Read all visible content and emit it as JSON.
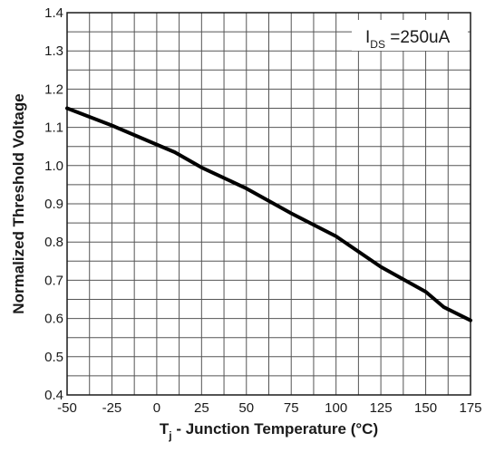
{
  "chart_data": {
    "type": "line",
    "xlabel_main": "T",
    "xlabel_sub": "j",
    "xlabel_rest": " - Junction Temperature (°C)",
    "ylabel": "Normalized Threshold Voltage",
    "xlim": [
      -50,
      175
    ],
    "ylim": [
      0.4,
      1.4
    ],
    "x_ticks": [
      "-50",
      "-25",
      "0",
      "25",
      "50",
      "75",
      "100",
      "125",
      "150",
      "175"
    ],
    "y_ticks": [
      "0.4",
      "0.5",
      "0.6",
      "0.7",
      "0.8",
      "0.9",
      "1.0",
      "1.1",
      "1.2",
      "1.3",
      "1.4"
    ],
    "x_tick_values": [
      -50,
      -25,
      0,
      25,
      50,
      75,
      100,
      125,
      150,
      175
    ],
    "y_tick_values": [
      0.4,
      0.5,
      0.6,
      0.7,
      0.8,
      0.9,
      1.0,
      1.1,
      1.2,
      1.3,
      1.4
    ],
    "x_minor_step": 12.5,
    "y_minor_step": 0.05,
    "grid": true,
    "annotation": {
      "main": "I",
      "sub": "DS",
      "rest": " =250uA",
      "position": "top-right"
    },
    "series": [
      {
        "x": [
          -50,
          -25,
          0,
          10,
          25,
          50,
          75,
          100,
          125,
          150,
          160,
          175
        ],
        "y": [
          1.15,
          1.105,
          1.055,
          1.035,
          0.995,
          0.94,
          0.875,
          0.815,
          0.735,
          0.67,
          0.63,
          0.595
        ],
        "color": "#000000"
      }
    ]
  }
}
